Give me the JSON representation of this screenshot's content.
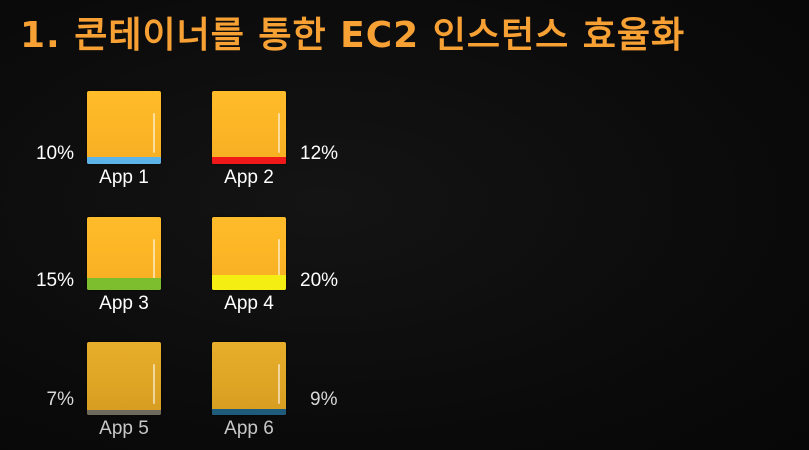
{
  "slide": {
    "title": "1. 콘테이너를 통한 EC2 인스턴스 효율화"
  },
  "apps": [
    {
      "label": "App 1",
      "percent": "10%",
      "bar_color": "#5BB3E8",
      "box_color": "#FDB827"
    },
    {
      "label": "App 2",
      "percent": "12%",
      "bar_color": "#F01818",
      "box_color": "#FDB827"
    },
    {
      "label": "App 3",
      "percent": "15%",
      "bar_color": "#7DBE2E",
      "box_color": "#FDB827"
    },
    {
      "label": "App 4",
      "percent": "20%",
      "bar_color": "#F5EE12",
      "box_color": "#FDB827"
    },
    {
      "label": "App 5",
      "percent": "7%",
      "bar_color": "#6E6A5E",
      "box_color": "#E2A828"
    },
    {
      "label": "App 6",
      "percent": "9%",
      "bar_color": "#1F5B7A",
      "box_color": "#E2A828"
    }
  ],
  "colors": {
    "title": "#F7A034",
    "background": "#0A0A0A",
    "text": "#FFFFFF"
  }
}
